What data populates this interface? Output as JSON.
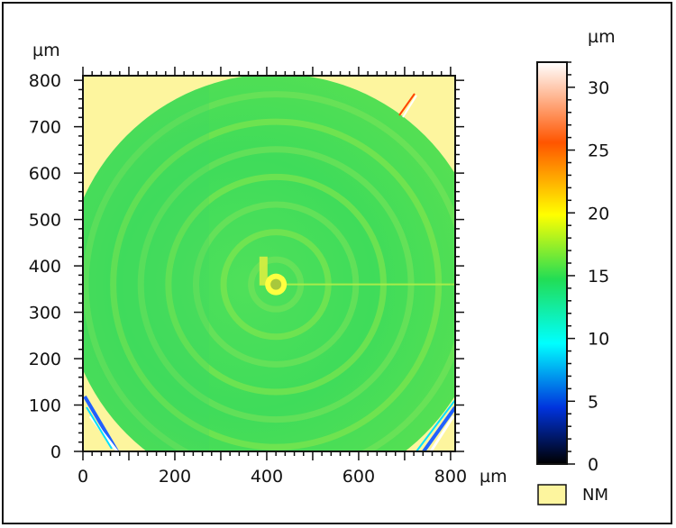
{
  "chart_data": {
    "type": "heatmap",
    "title": "",
    "x_unit": "µm",
    "y_unit": "µm",
    "colorbar_unit": "µm",
    "xlim": [
      0,
      810
    ],
    "ylim": [
      0,
      810
    ],
    "x_ticks": [
      0,
      200,
      400,
      600,
      800
    ],
    "y_ticks": [
      0,
      100,
      200,
      300,
      400,
      500,
      600,
      700,
      800
    ],
    "colorbar_range": [
      0,
      32
    ],
    "colorbar_ticks": [
      0,
      5,
      10,
      15,
      20,
      25,
      30
    ],
    "colormap": [
      "#000000",
      "#0033dd",
      "#00ffff",
      "#22dd55",
      "#ffff00",
      "#ff5500",
      "#ffffff"
    ],
    "not_measured_color": "#fdf59e",
    "legend": {
      "swatch_label": "NM",
      "swatch_color": "#fdf59e"
    },
    "surface": {
      "description_values_um": {
        "bulk": 13.5,
        "center_spot": 19
      },
      "center_xy_um": [
        420,
        360
      ],
      "radius_um": 405,
      "ring_spacing_um": 60
    }
  }
}
